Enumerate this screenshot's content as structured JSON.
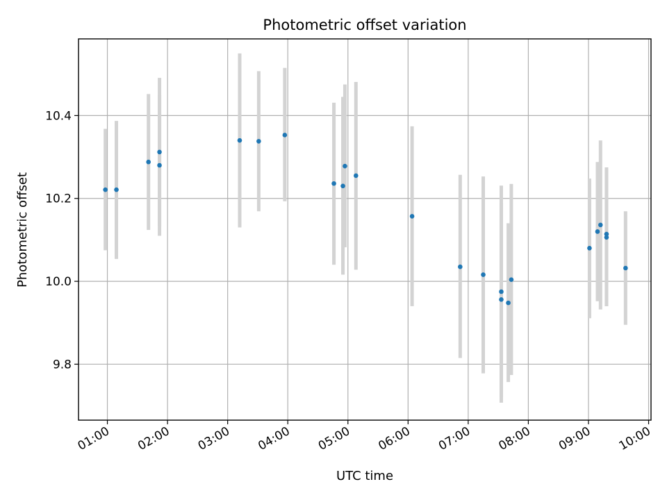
{
  "chart_data": {
    "type": "scatter",
    "title": "Photometric offset variation",
    "xlabel": "UTC time",
    "ylabel": "Photometric offset",
    "x_tick_labels": [
      "01:00",
      "02:00",
      "03:00",
      "04:00",
      "05:00",
      "06:00",
      "07:00",
      "08:00",
      "09:00",
      "10:00"
    ],
    "x_ticks_hours": [
      1,
      2,
      3,
      4,
      5,
      6,
      7,
      8,
      9,
      10
    ],
    "y_tick_labels": [
      "9.8",
      "10.0",
      "10.2",
      "10.4"
    ],
    "y_ticks": [
      9.8,
      10.0,
      10.2,
      10.4
    ],
    "xlim_hours": [
      0.52,
      10.04
    ],
    "ylim": [
      9.665,
      10.585
    ],
    "grid": true,
    "colors": {
      "point": "#1f77b4",
      "errorbar": "#d3d3d3",
      "grid": "#b0b0b0"
    },
    "points": [
      {
        "time": "00:58",
        "y": 10.221,
        "yerr_low": 10.075,
        "yerr_high": 10.368
      },
      {
        "time": "01:09",
        "y": 10.221,
        "yerr_low": 10.054,
        "yerr_high": 10.387
      },
      {
        "time": "01:41",
        "y": 10.288,
        "yerr_low": 10.124,
        "yerr_high": 10.452
      },
      {
        "time": "01:52",
        "y": 10.312,
        "yerr_low": 10.132,
        "yerr_high": 10.491
      },
      {
        "time": "01:52",
        "y": 10.28,
        "yerr_low": 10.11,
        "yerr_high": 10.449
      },
      {
        "time": "03:12",
        "y": 10.34,
        "yerr_low": 10.13,
        "yerr_high": 10.55
      },
      {
        "time": "03:31",
        "y": 10.338,
        "yerr_low": 10.169,
        "yerr_high": 10.507
      },
      {
        "time": "03:57",
        "y": 10.353,
        "yerr_low": 10.193,
        "yerr_high": 10.515
      },
      {
        "time": "04:46",
        "y": 10.236,
        "yerr_low": 10.04,
        "yerr_high": 10.431
      },
      {
        "time": "04:55",
        "y": 10.23,
        "yerr_low": 10.016,
        "yerr_high": 10.445
      },
      {
        "time": "04:57",
        "y": 10.278,
        "yerr_low": 10.082,
        "yerr_high": 10.475
      },
      {
        "time": "05:08",
        "y": 10.255,
        "yerr_low": 10.028,
        "yerr_high": 10.481
      },
      {
        "time": "06:04",
        "y": 10.157,
        "yerr_low": 9.94,
        "yerr_high": 10.374
      },
      {
        "time": "06:52",
        "y": 10.035,
        "yerr_low": 9.815,
        "yerr_high": 10.257
      },
      {
        "time": "07:15",
        "y": 10.016,
        "yerr_low": 9.778,
        "yerr_high": 10.253
      },
      {
        "time": "07:33",
        "y": 9.975,
        "yerr_low": 9.72,
        "yerr_high": 10.231
      },
      {
        "time": "07:33",
        "y": 9.956,
        "yerr_low": 9.707,
        "yerr_high": 10.19
      },
      {
        "time": "07:40",
        "y": 9.948,
        "yerr_low": 9.757,
        "yerr_high": 10.14
      },
      {
        "time": "07:43",
        "y": 10.004,
        "yerr_low": 9.774,
        "yerr_high": 10.235
      },
      {
        "time": "09:01",
        "y": 10.08,
        "yerr_low": 9.911,
        "yerr_high": 10.248
      },
      {
        "time": "09:09",
        "y": 10.12,
        "yerr_low": 9.952,
        "yerr_high": 10.288
      },
      {
        "time": "09:12",
        "y": 10.136,
        "yerr_low": 9.932,
        "yerr_high": 10.34
      },
      {
        "time": "09:18",
        "y": 10.114,
        "yerr_low": 9.94,
        "yerr_high": 10.275
      },
      {
        "time": "09:18",
        "y": 10.106,
        "yerr_low": 9.94,
        "yerr_high": 10.27
      },
      {
        "time": "09:37",
        "y": 10.032,
        "yerr_low": 9.895,
        "yerr_high": 10.169
      }
    ]
  }
}
